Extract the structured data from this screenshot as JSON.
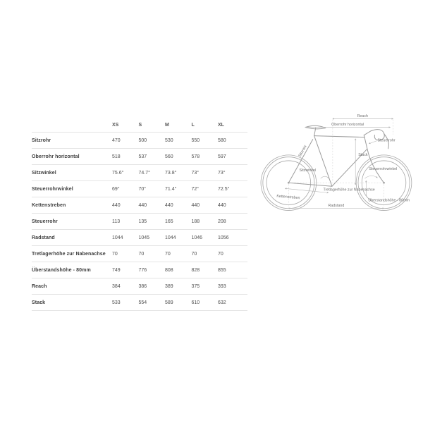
{
  "table": {
    "columns": [
      "XS",
      "S",
      "M",
      "L",
      "XL"
    ],
    "rows": [
      {
        "label": "Sitzrohr",
        "values": [
          "470",
          "500",
          "530",
          "550",
          "580"
        ]
      },
      {
        "label": "Oberrohr horizontal",
        "values": [
          "518",
          "537",
          "560",
          "578",
          "597"
        ]
      },
      {
        "label": "Sitzwinkel",
        "values": [
          "75.6°",
          "74.7°",
          "73.8°",
          "73°",
          "73°"
        ]
      },
      {
        "label": "Steuerrohrwinkel",
        "values": [
          "69°",
          "70°",
          "71.4°",
          "72°",
          "72.5°"
        ]
      },
      {
        "label": "Kettenstreben",
        "values": [
          "440",
          "440",
          "440",
          "440",
          "440"
        ]
      },
      {
        "label": "Steuerrohr",
        "values": [
          "113",
          "135",
          "165",
          "188",
          "208"
        ]
      },
      {
        "label": "Radstand",
        "values": [
          "1044",
          "1045",
          "1044",
          "1046",
          "1056"
        ]
      },
      {
        "label": "Tretlagerhöhe zur Nabenachse",
        "values": [
          "70",
          "70",
          "70",
          "70",
          "70"
        ]
      },
      {
        "label": "Überstandshöhe - 80mm",
        "values": [
          "749",
          "776",
          "808",
          "828",
          "855"
        ]
      },
      {
        "label": "Reach",
        "values": [
          "384",
          "386",
          "389",
          "375",
          "393"
        ]
      },
      {
        "label": "Stack",
        "values": [
          "533",
          "554",
          "589",
          "610",
          "632"
        ]
      }
    ]
  },
  "diagram": {
    "labels": {
      "reach": "Reach",
      "oberrohr": "Oberrohr horizontal",
      "sitzrohr": "Sitzrohr",
      "sitzwinkel": "Sitzwinkel",
      "steuerrohr": "Steuerrohr",
      "stack": "Stack",
      "steuerrohrwinkel": "Steuerrohrwinkel",
      "tretlagerhoehe": "Tretlagerhöhe zur Nabenachse",
      "kettenstreben": "Kettenstreben",
      "ueberstandshoehe": "Überstandshöhe - 80mm",
      "radstand": "Radstand"
    },
    "colors": {
      "line": "#9d9d9d",
      "dimension": "#b3b3b3",
      "label": "#6f6f6f"
    }
  }
}
